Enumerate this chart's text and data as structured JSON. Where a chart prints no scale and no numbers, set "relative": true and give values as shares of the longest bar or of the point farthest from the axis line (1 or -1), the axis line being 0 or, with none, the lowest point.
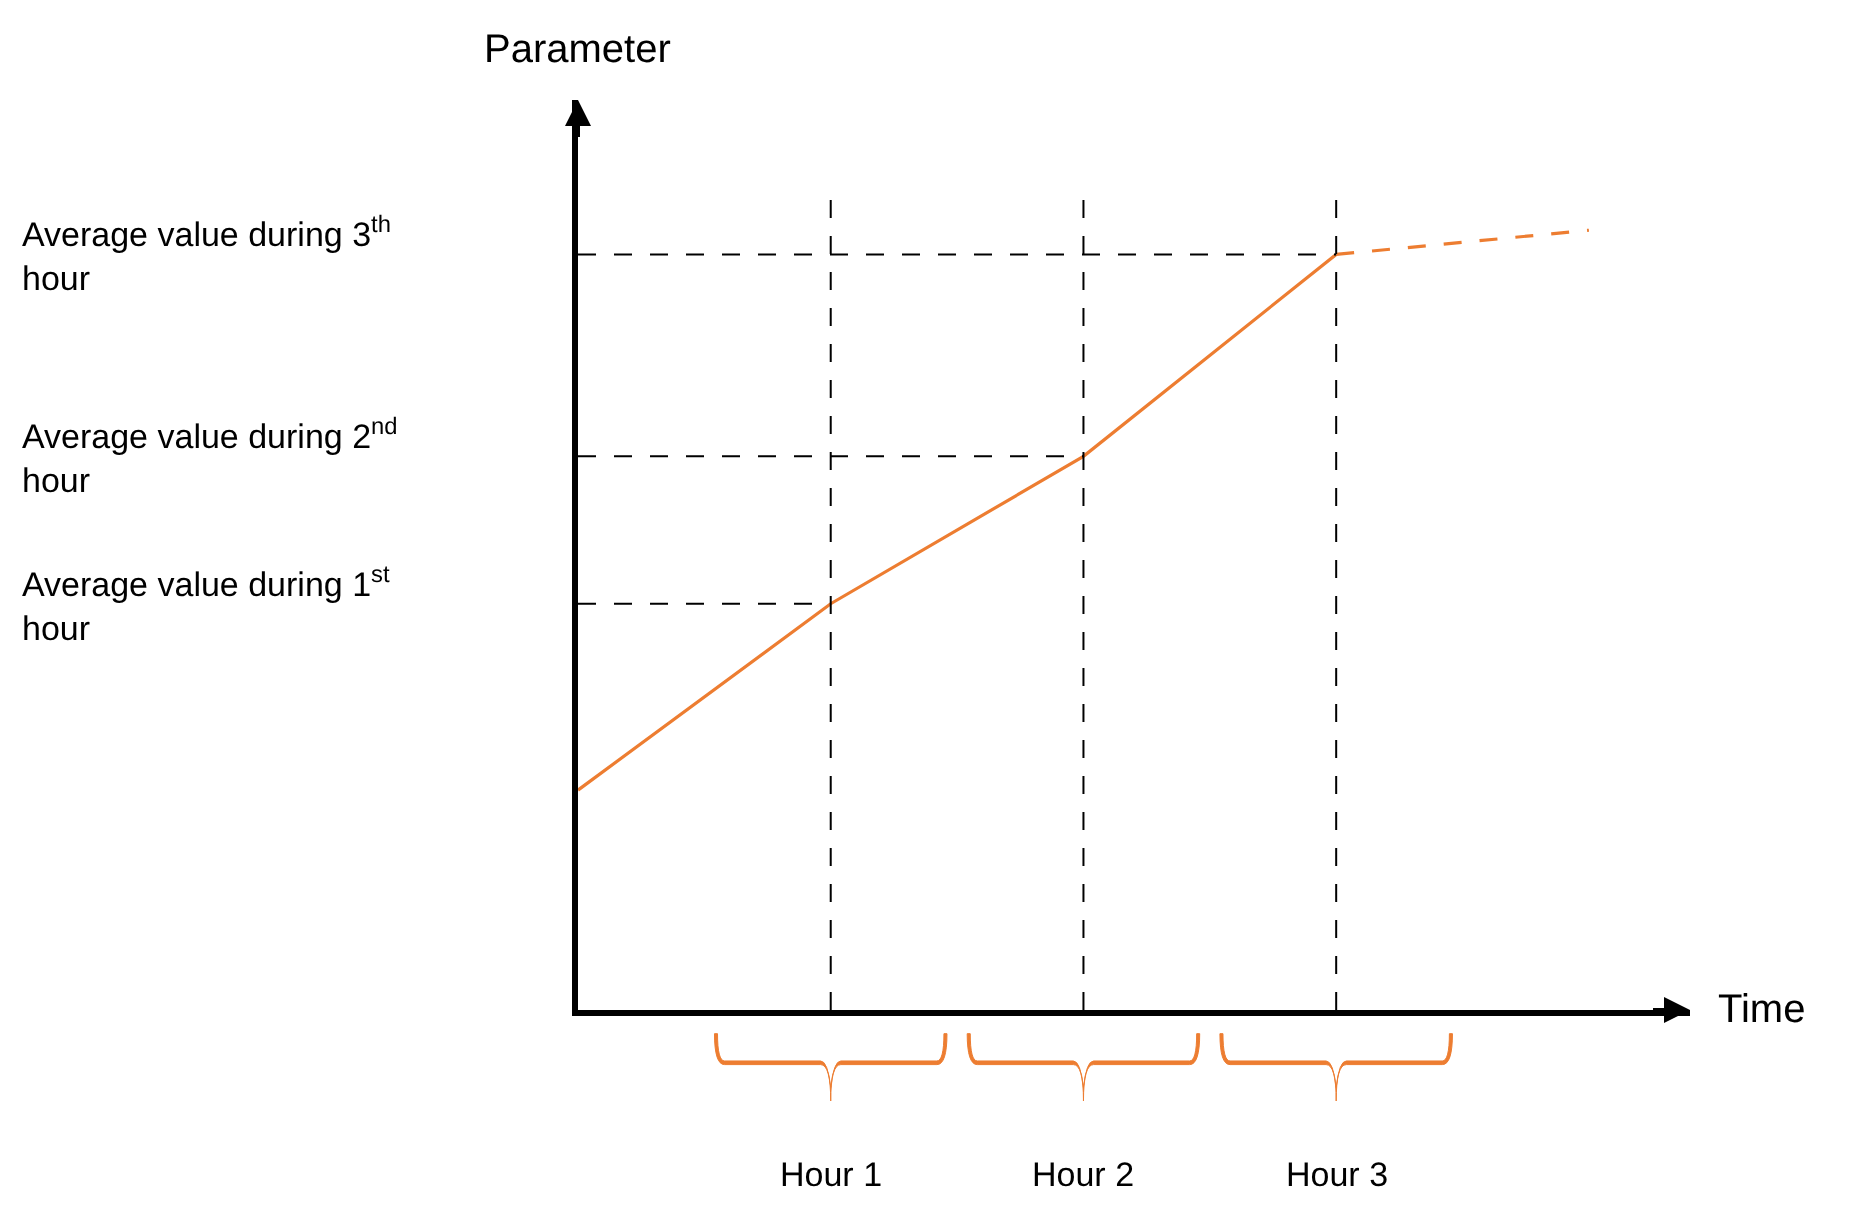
{
  "chart_data": {
    "type": "line",
    "relative": true,
    "xlabel": "Time",
    "ylabel": "Parameter",
    "categories": [
      null,
      null,
      null,
      null,
      null
    ],
    "grid": "x",
    "marker": "none",
    "series": [
      {
        "color": "#ed7d31",
        "values": [
          0.282,
          0.521,
          0.71,
          0.969,
          null
        ],
        "line_style": "solid"
      },
      {
        "color": "#ed7d31",
        "values": [
          null,
          null,
          null,
          0.969,
          1
        ],
        "line_style": "dashed"
      }
    ],
    "ref_lines": [
      {
        "axis": "y",
        "value": 0.521,
        "label": "Average value during 1$^{st}$ hour",
        "color": "#000000",
        "line_style": "dashed"
      },
      {
        "axis": "y",
        "value": 0.71,
        "label": "Average value during 2$^{nd}$ hour",
        "color": "#000000",
        "line_style": "dashed"
      },
      {
        "axis": "y",
        "value": 0.969,
        "label": "Average value during 3$^{th}$ hour",
        "color": "#000000",
        "line_style": "dashed"
      }
    ],
    "annotations": [
      "Hour 1",
      "Hour 2",
      "Hour 3"
    ]
  }
}
